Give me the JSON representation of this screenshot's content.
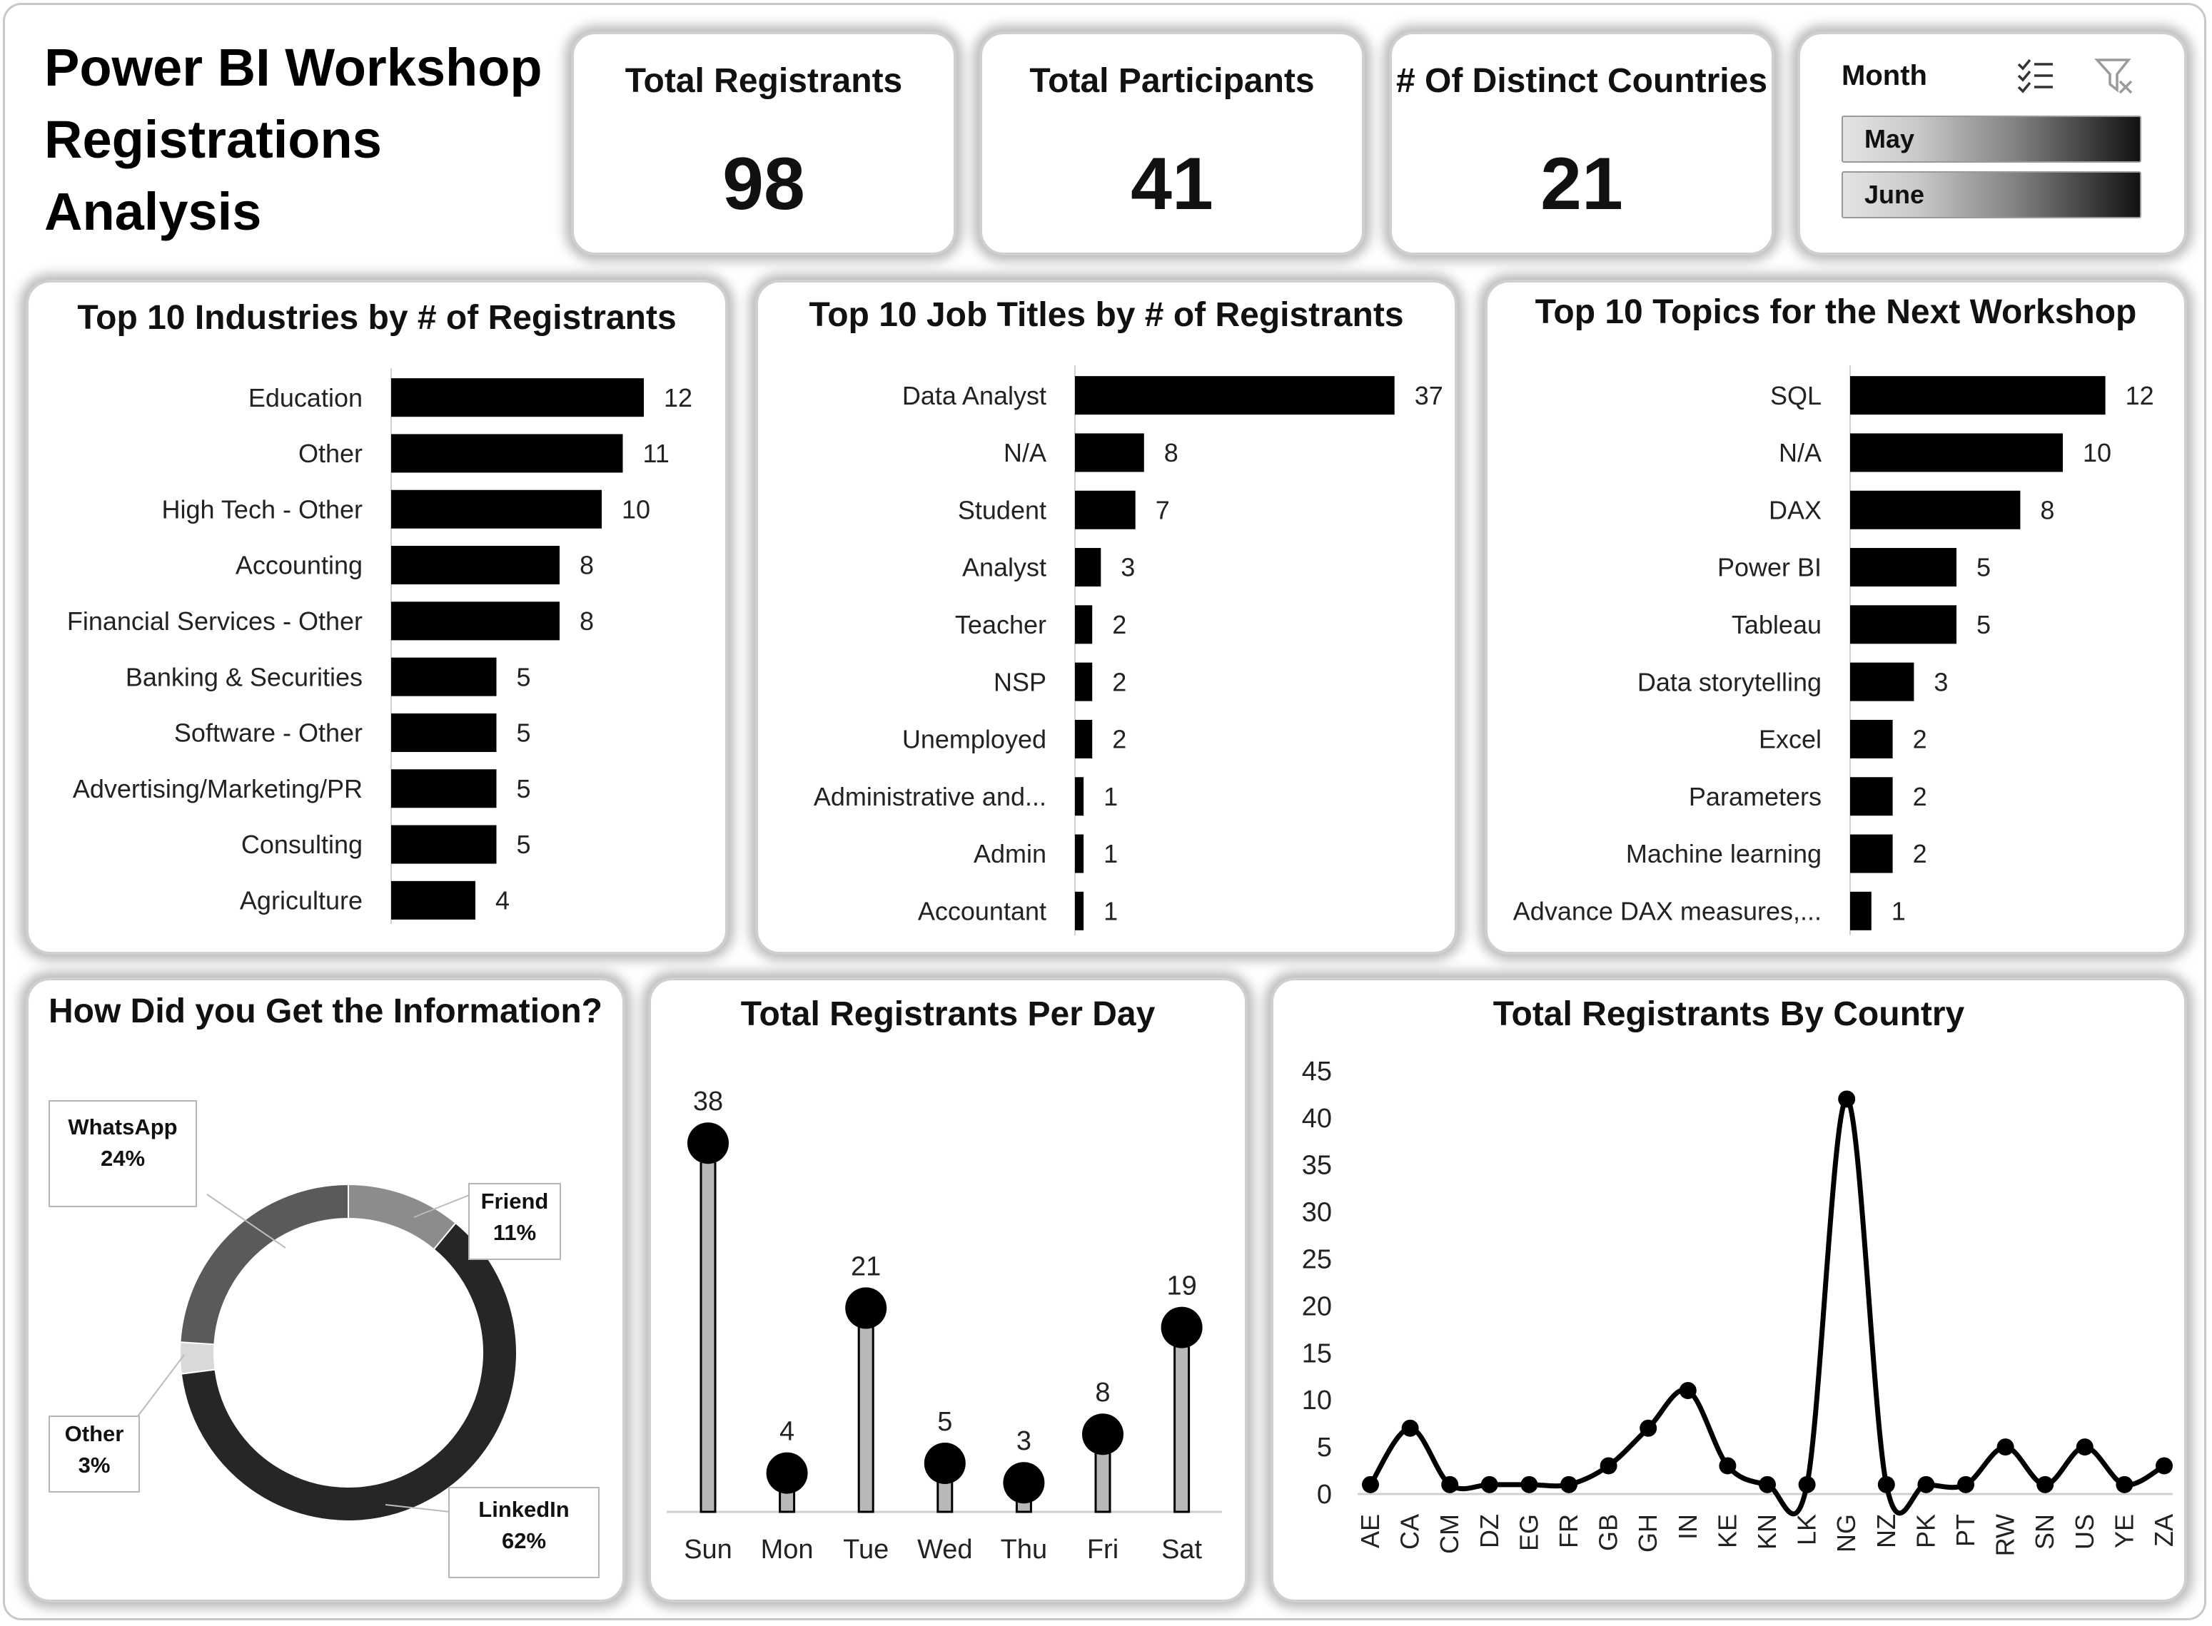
{
  "dashboard": {
    "title": "Power BI Workshop Registrations Analysis"
  },
  "kpis": [
    {
      "label": "Total Registrants",
      "value": "98"
    },
    {
      "label": "Total Participants",
      "value": "41"
    },
    {
      "label": "# Of Distinct Countries",
      "value": "21"
    }
  ],
  "slicer": {
    "title": "Month",
    "items": [
      "May",
      "June"
    ],
    "icons": [
      "multi-select-icon",
      "clear-filter-icon"
    ]
  },
  "colors": {
    "bar": "#000000",
    "panel_border": "#cfcfcf",
    "lollipop_stem": "#b8b8b8",
    "donut": {
      "WhatsApp": "#5a5a5a",
      "Friend": "#8c8c8c",
      "LinkedIn": "#262626",
      "Other": "#d9d9d9"
    }
  },
  "chart_data": [
    {
      "type": "bar",
      "orientation": "horizontal",
      "title": "Top 10 Industries by # of Registrants",
      "categories": [
        "Education",
        "Other",
        "High Tech - Other",
        "Accounting",
        "Financial Services - Other",
        "Banking & Securities",
        "Software - Other",
        "Advertising/Marketing/PR",
        "Consulting",
        "Agriculture"
      ],
      "values": [
        12,
        11,
        10,
        8,
        8,
        5,
        5,
        5,
        5,
        4
      ],
      "data_labels": true,
      "grid": false
    },
    {
      "type": "bar",
      "orientation": "horizontal",
      "title": "Top 10 Job Titles by # of Registrants",
      "categories": [
        "Data Analyst",
        "N/A",
        "Student",
        "Analyst",
        "Teacher",
        "NSP",
        "Unemployed",
        "Administrative and...",
        "Admin",
        "Accountant"
      ],
      "values": [
        37,
        8,
        7,
        3,
        2,
        2,
        2,
        1,
        1,
        1
      ],
      "data_labels": true,
      "grid": false
    },
    {
      "type": "bar",
      "orientation": "horizontal",
      "title": "Top 10 Topics for the Next Workshop",
      "categories": [
        "SQL",
        "N/A",
        "DAX",
        "Power BI",
        "Tableau",
        "Data storytelling",
        "Excel",
        "Parameters",
        "Machine learning",
        "Advance DAX measures,..."
      ],
      "values": [
        12,
        10,
        8,
        5,
        5,
        3,
        2,
        2,
        2,
        1
      ],
      "data_labels": true,
      "grid": false
    },
    {
      "type": "pie",
      "variant": "donut",
      "title": "How Did you Get the Information?",
      "categories": [
        "Friend",
        "LinkedIn",
        "Other",
        "WhatsApp"
      ],
      "values": [
        11,
        62,
        3,
        24
      ],
      "labels": [
        "11%",
        "62%",
        "3%",
        "24%"
      ]
    },
    {
      "type": "bar",
      "variant": "lollipop",
      "title": "Total Registrants Per Day",
      "categories": [
        "Sun",
        "Mon",
        "Tue",
        "Wed",
        "Thu",
        "Fri",
        "Sat"
      ],
      "values": [
        38,
        4,
        21,
        5,
        3,
        8,
        19
      ],
      "data_labels": true,
      "grid": false
    },
    {
      "type": "line",
      "smooth": true,
      "markers": true,
      "title": "Total Registrants By Country",
      "x": [
        "AE",
        "CA",
        "CM",
        "DZ",
        "EG",
        "FR",
        "GB",
        "GH",
        "IN",
        "KE",
        "KN",
        "LK",
        "NG",
        "NZ",
        "PK",
        "PT",
        "RW",
        "SN",
        "US",
        "YE",
        "ZA"
      ],
      "values": [
        1,
        7,
        1,
        1,
        1,
        1,
        3,
        7,
        11,
        3,
        1,
        1,
        42,
        1,
        1,
        1,
        5,
        1,
        5,
        1,
        3
      ],
      "ylim": [
        0,
        45
      ],
      "yticks": [
        0,
        5,
        10,
        15,
        20,
        25,
        30,
        35,
        40,
        45
      ],
      "grid": false
    }
  ]
}
